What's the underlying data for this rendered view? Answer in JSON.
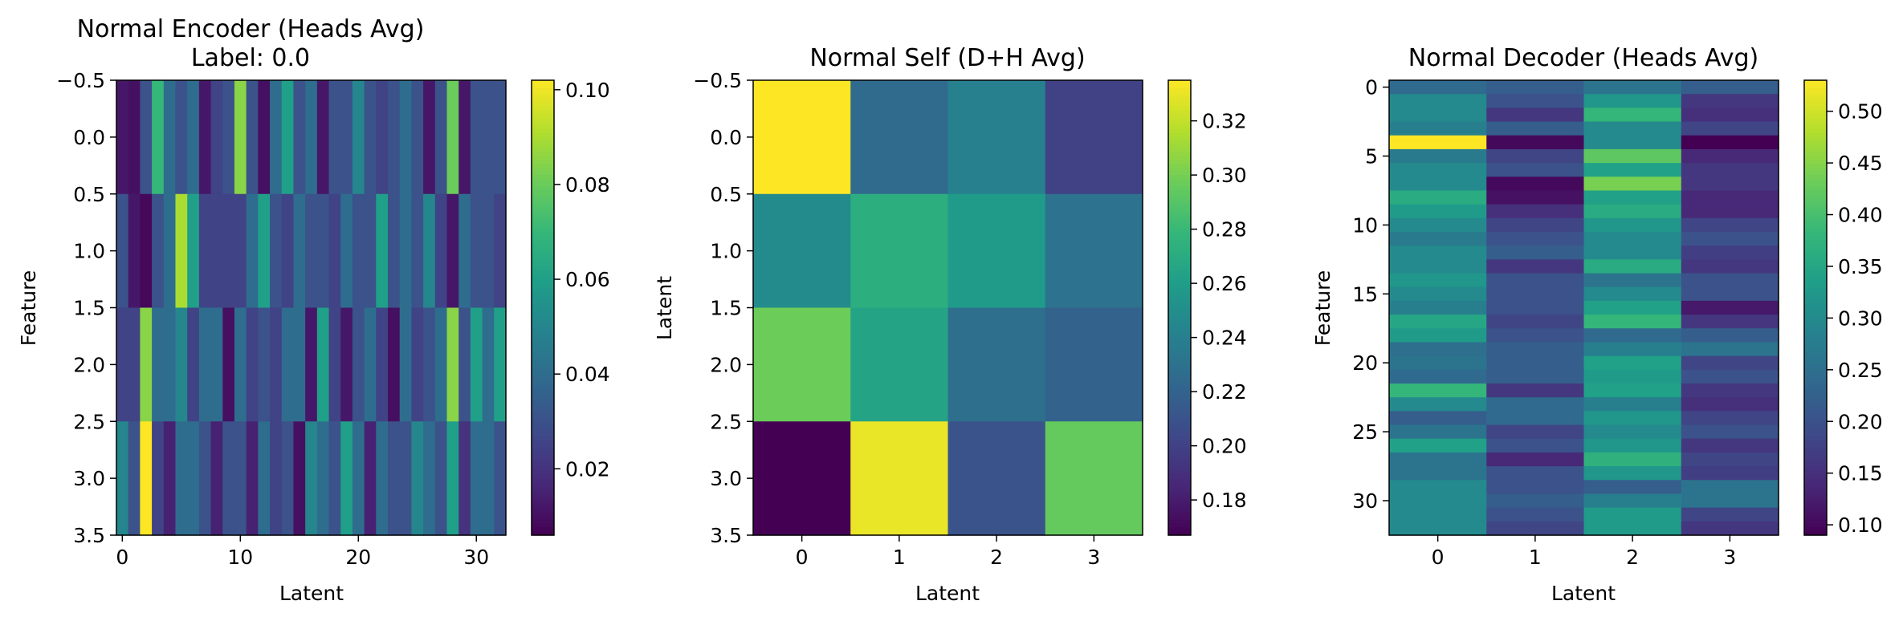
{
  "colormap": "viridis",
  "chart_data": [
    {
      "type": "heatmap",
      "title": "Normal Encoder (Heads Avg)",
      "subtitle": "Label: 0.0",
      "xlabel": "Latent",
      "ylabel": "Feature",
      "n_cols": 33,
      "n_rows": 4,
      "xticks": [
        "0",
        "10",
        "20",
        "30"
      ],
      "yticks": [
        "−0.5",
        "0.0",
        "0.5",
        "1.0",
        "1.5",
        "2.0",
        "2.5",
        "3.0",
        "3.5"
      ],
      "colorbar": {
        "min": 0.006,
        "max": 0.102,
        "ticks": [
          "0.02",
          "0.04",
          "0.06",
          "0.08",
          "0.10"
        ],
        "tick_values": [
          0.02,
          0.04,
          0.06,
          0.08,
          0.1
        ]
      },
      "values": [
        [
          0.012,
          0.01,
          0.03,
          0.07,
          0.04,
          0.03,
          0.04,
          0.012,
          0.025,
          0.03,
          0.085,
          0.03,
          0.01,
          0.04,
          0.06,
          0.03,
          0.04,
          0.012,
          0.03,
          0.03,
          0.05,
          0.03,
          0.025,
          0.03,
          0.04,
          0.03,
          0.012,
          0.03,
          0.08,
          0.012,
          0.03,
          0.03,
          0.03
        ],
        [
          0.03,
          0.012,
          0.008,
          0.03,
          0.04,
          0.09,
          0.06,
          0.025,
          0.025,
          0.025,
          0.025,
          0.04,
          0.06,
          0.03,
          0.025,
          0.04,
          0.03,
          0.03,
          0.025,
          0.04,
          0.03,
          0.03,
          0.06,
          0.03,
          0.04,
          0.03,
          0.05,
          0.025,
          0.012,
          0.04,
          0.03,
          0.03,
          0.025
        ],
        [
          0.025,
          0.025,
          0.085,
          0.04,
          0.04,
          0.05,
          0.025,
          0.04,
          0.04,
          0.01,
          0.04,
          0.025,
          0.03,
          0.025,
          0.04,
          0.04,
          0.012,
          0.06,
          0.025,
          0.012,
          0.03,
          0.04,
          0.025,
          0.01,
          0.04,
          0.025,
          0.03,
          0.04,
          0.085,
          0.03,
          0.06,
          0.04,
          0.06
        ],
        [
          0.05,
          0.03,
          0.102,
          0.025,
          0.015,
          0.04,
          0.04,
          0.03,
          0.015,
          0.03,
          0.03,
          0.015,
          0.04,
          0.025,
          0.03,
          0.01,
          0.05,
          0.04,
          0.03,
          0.06,
          0.04,
          0.015,
          0.04,
          0.03,
          0.03,
          0.05,
          0.04,
          0.03,
          0.06,
          0.02,
          0.04,
          0.04,
          0.03
        ]
      ]
    },
    {
      "type": "heatmap",
      "title": "Normal Self (D+H Avg)",
      "xlabel": "Latent",
      "ylabel": "Latent",
      "n_cols": 4,
      "n_rows": 4,
      "xticks": [
        "0",
        "1",
        "2",
        "3"
      ],
      "yticks": [
        "−0.5",
        "0.0",
        "0.5",
        "1.0",
        "1.5",
        "2.0",
        "2.5",
        "3.0",
        "3.5"
      ],
      "colorbar": {
        "min": 0.167,
        "max": 0.335,
        "ticks": [
          "0.18",
          "0.20",
          "0.22",
          "0.24",
          "0.26",
          "0.28",
          "0.30",
          "0.32"
        ],
        "tick_values": [
          0.18,
          0.2,
          0.22,
          0.24,
          0.26,
          0.28,
          0.3,
          0.32
        ]
      },
      "values": [
        [
          0.335,
          0.225,
          0.24,
          0.2
        ],
        [
          0.248,
          0.272,
          0.258,
          0.23
        ],
        [
          0.297,
          0.265,
          0.228,
          0.22
        ],
        [
          0.167,
          0.33,
          0.21,
          0.295
        ]
      ]
    },
    {
      "type": "heatmap",
      "title": "Normal Decoder (Heads Avg)",
      "xlabel": "Latent",
      "ylabel": "Feature",
      "n_cols": 4,
      "n_rows": 33,
      "xticks": [
        "0",
        "1",
        "2",
        "3"
      ],
      "yticks": [
        "0",
        "5",
        "10",
        "15",
        "20",
        "25",
        "30"
      ],
      "colorbar": {
        "min": 0.09,
        "max": 0.53,
        "ticks": [
          "0.10",
          "0.15",
          "0.20",
          "0.25",
          "0.30",
          "0.35",
          "0.40",
          "0.45",
          "0.50"
        ],
        "tick_values": [
          0.1,
          0.15,
          0.2,
          0.25,
          0.3,
          0.35,
          0.4,
          0.45,
          0.5
        ]
      },
      "values": [
        [
          0.24,
          0.22,
          0.26,
          0.22
        ],
        [
          0.3,
          0.2,
          0.32,
          0.16
        ],
        [
          0.3,
          0.16,
          0.38,
          0.15
        ],
        [
          0.28,
          0.22,
          0.3,
          0.18
        ],
        [
          0.53,
          0.1,
          0.3,
          0.09
        ],
        [
          0.27,
          0.18,
          0.42,
          0.14
        ],
        [
          0.3,
          0.2,
          0.34,
          0.16
        ],
        [
          0.3,
          0.1,
          0.44,
          0.16
        ],
        [
          0.36,
          0.11,
          0.34,
          0.14
        ],
        [
          0.33,
          0.15,
          0.36,
          0.14
        ],
        [
          0.3,
          0.18,
          0.32,
          0.18
        ],
        [
          0.27,
          0.2,
          0.3,
          0.2
        ],
        [
          0.3,
          0.22,
          0.3,
          0.17
        ],
        [
          0.3,
          0.16,
          0.36,
          0.16
        ],
        [
          0.32,
          0.2,
          0.26,
          0.2
        ],
        [
          0.3,
          0.2,
          0.3,
          0.2
        ],
        [
          0.28,
          0.2,
          0.34,
          0.12
        ],
        [
          0.35,
          0.18,
          0.38,
          0.16
        ],
        [
          0.33,
          0.2,
          0.24,
          0.22
        ],
        [
          0.25,
          0.22,
          0.28,
          0.26
        ],
        [
          0.26,
          0.22,
          0.34,
          0.18
        ],
        [
          0.24,
          0.22,
          0.33,
          0.2
        ],
        [
          0.38,
          0.16,
          0.34,
          0.16
        ],
        [
          0.3,
          0.24,
          0.28,
          0.15
        ],
        [
          0.22,
          0.24,
          0.32,
          0.18
        ],
        [
          0.26,
          0.18,
          0.3,
          0.2
        ],
        [
          0.34,
          0.2,
          0.32,
          0.16
        ],
        [
          0.26,
          0.14,
          0.37,
          0.18
        ],
        [
          0.26,
          0.2,
          0.32,
          0.17
        ],
        [
          0.3,
          0.2,
          0.22,
          0.26
        ],
        [
          0.3,
          0.22,
          0.28,
          0.26
        ],
        [
          0.3,
          0.2,
          0.33,
          0.18
        ],
        [
          0.3,
          0.18,
          0.33,
          0.16
        ]
      ]
    }
  ]
}
